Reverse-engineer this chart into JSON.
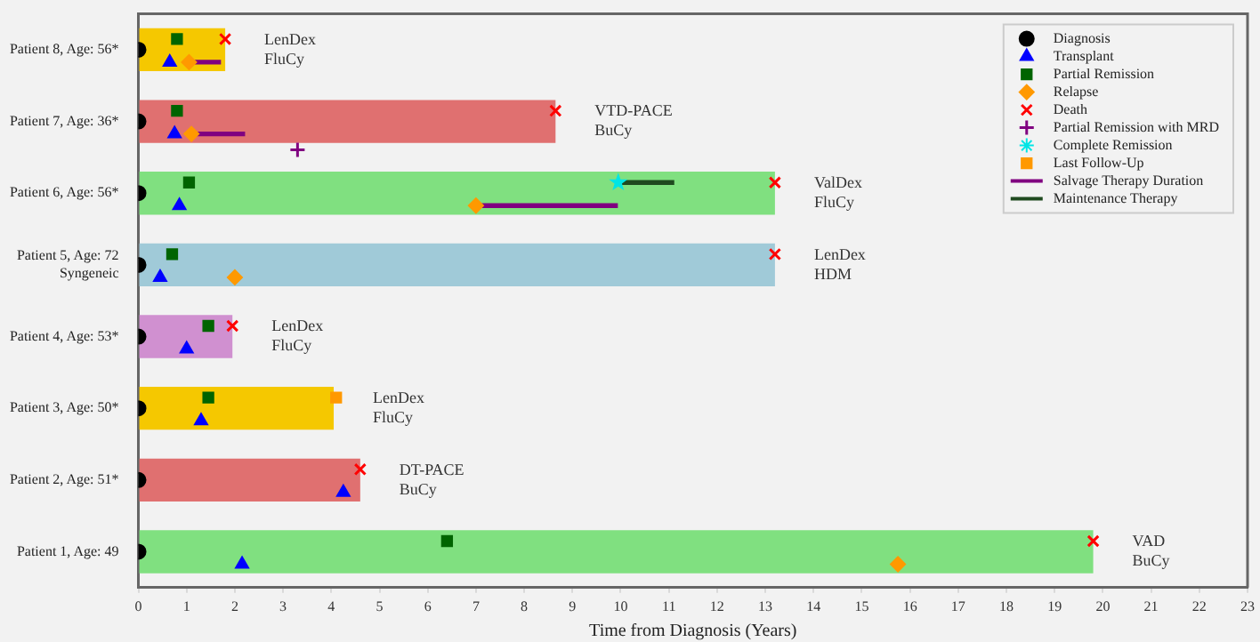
{
  "chart_data": {
    "type": "bar",
    "orientation": "horizontal",
    "xlabel": "Time from Diagnosis (Years)",
    "xlim": [
      0,
      23
    ],
    "xticks": [
      0,
      1,
      2,
      3,
      4,
      5,
      6,
      7,
      8,
      9,
      10,
      11,
      12,
      13,
      14,
      15,
      16,
      17,
      18,
      19,
      20,
      21,
      22,
      23
    ],
    "legend": "top right",
    "grid": false,
    "categories": [
      "Patient 8, Age: 56*",
      "Patient 7, Age: 36*",
      "Patient 6, Age: 56*",
      "Patient 5, Age: 72\nSyngeneic",
      "Patient 4, Age: 53*",
      "Patient 3, Age: 50*",
      "Patient 2, Age: 51*",
      "Patient 1, Age: 49"
    ],
    "series": [
      {
        "type": "bar",
        "values": [
          1.8,
          8.65,
          13.2,
          13.2,
          1.95,
          4.05,
          4.6,
          19.8
        ],
        "colors": [
          "#f5c800",
          "#e07070",
          "#80e080",
          "#a0cad8",
          "#d090d0",
          "#f5c800",
          "#e07070",
          "#80e080"
        ]
      },
      {
        "type": "scatter",
        "name": "Diagnosis",
        "color": "#000000",
        "marker": "circle",
        "values": [
          0,
          0,
          0,
          0,
          0,
          0,
          0,
          0
        ]
      },
      {
        "type": "scatter",
        "name": "Transplant",
        "color": "#0000ff",
        "marker": "triangle",
        "values": [
          0.65,
          0.75,
          0.85,
          0.45,
          1.0,
          1.3,
          4.25,
          2.15
        ]
      },
      {
        "type": "scatter",
        "name": "Partial Remission",
        "color": "#006400",
        "marker": "square",
        "values": [
          0.8,
          0.8,
          1.05,
          0.7,
          1.45,
          1.45,
          null,
          6.4
        ]
      },
      {
        "type": "scatter",
        "name": "Relapse",
        "color": "#ff9900",
        "marker": "diamond",
        "values": [
          1.05,
          1.1,
          7.0,
          2.0,
          null,
          null,
          null,
          15.75
        ]
      },
      {
        "type": "scatter",
        "name": "Death",
        "color": "#ff0000",
        "marker": "x",
        "values": [
          1.8,
          8.65,
          13.2,
          13.2,
          1.95,
          null,
          4.6,
          19.8
        ]
      },
      {
        "type": "scatter",
        "name": "Partial Remission with MRD",
        "color": "#800080",
        "marker": "cross",
        "values": [
          null,
          3.3,
          null,
          null,
          null,
          null,
          null,
          null
        ]
      },
      {
        "type": "scatter",
        "name": "Complete Remission",
        "color": "#00e5e5",
        "marker": "star",
        "values": [
          null,
          null,
          9.95,
          null,
          null,
          null,
          null,
          null
        ]
      },
      {
        "type": "scatter",
        "name": "Last Follow-Up",
        "color": "#ff9900",
        "marker": "square",
        "values": [
          null,
          null,
          null,
          null,
          null,
          4.1,
          null,
          null
        ]
      },
      {
        "type": "bar",
        "name": "Salvage Therapy Duration",
        "color": "#800080",
        "line_style": "solid",
        "base": [
          0.97,
          1.1,
          7.0,
          null,
          null,
          null,
          null,
          null
        ],
        "values": [
          0.73,
          1.1,
          2.93,
          null,
          null,
          null,
          null,
          null
        ]
      },
      {
        "type": "bar",
        "name": "Maintenance Therapy",
        "color": "#1f4a1f",
        "base": [
          null,
          null,
          9.95,
          null,
          null,
          null,
          null,
          null
        ],
        "values": [
          null,
          null,
          1.15,
          null,
          null,
          null,
          null,
          null
        ]
      }
    ],
    "annotations": [
      "LenDex\nFluCy",
      "VTD-PACE\nBuCy",
      "ValDex\nFluCy",
      "LenDex\nHDM",
      "LenDex\nFluCy",
      "LenDex\nFluCy",
      "DT-PACE\nBuCy",
      "VAD\nBuCy"
    ]
  }
}
